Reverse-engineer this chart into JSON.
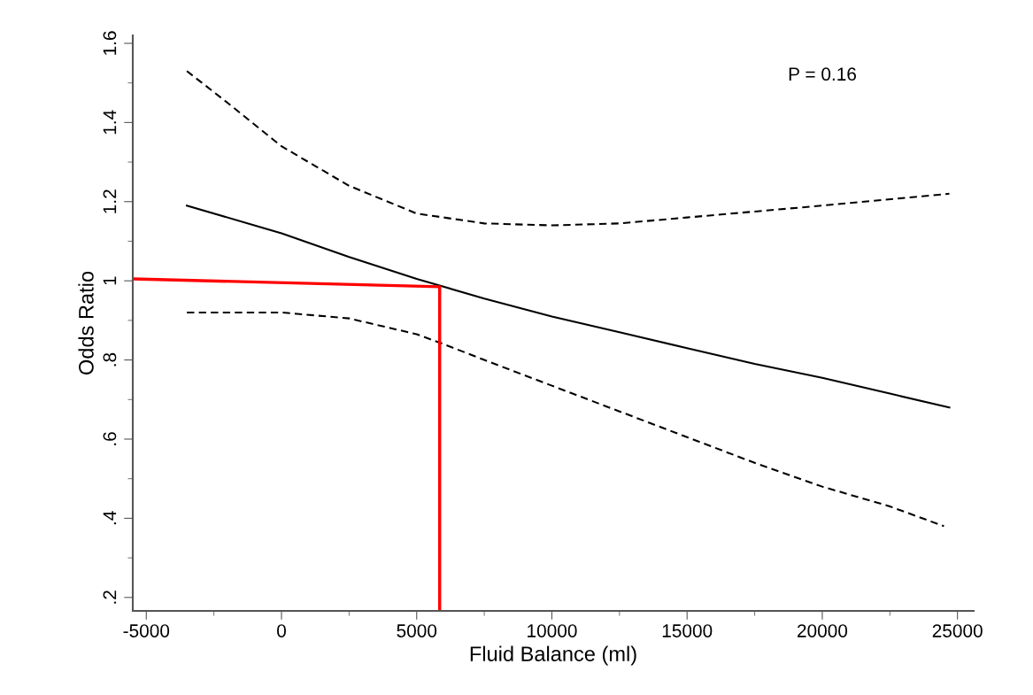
{
  "chart_data": {
    "type": "line",
    "xlabel": "Fluid Balance (ml)",
    "ylabel": "Odds Ratio",
    "annotations": [
      "P = 0.16"
    ],
    "series": [
      {
        "color": "#000000",
        "line_style": "dashed",
        "x": [
          -3500,
          -2000,
          0,
          2500,
          5000,
          7500,
          10000,
          12500,
          15000,
          17500,
          20000,
          24700
        ],
        "values": [
          1.53,
          1.45,
          1.34,
          1.24,
          1.17,
          1.145,
          1.14,
          1.145,
          1.16,
          1.175,
          1.19,
          1.22
        ]
      },
      {
        "color": "#000000",
        "line_style": "solid",
        "x": [
          -3500,
          0,
          2500,
          5000,
          7500,
          10000,
          12500,
          15000,
          17500,
          20000,
          22500,
          24700
        ],
        "values": [
          1.19,
          1.12,
          1.06,
          1.005,
          0.955,
          0.91,
          0.87,
          0.83,
          0.79,
          0.755,
          0.715,
          0.68
        ]
      },
      {
        "color": "#000000",
        "line_style": "dashed",
        "x": [
          -3500,
          0,
          2500,
          5000,
          6000,
          7500,
          10000,
          12500,
          15000,
          17500,
          20000,
          22500,
          24500
        ],
        "values": [
          0.92,
          0.92,
          0.905,
          0.865,
          0.84,
          0.8,
          0.735,
          0.67,
          0.605,
          0.54,
          0.48,
          0.43,
          0.38
        ]
      },
      {
        "color": "#ff0000",
        "line_style": "solid",
        "x": [
          -5500,
          5850,
          5850
        ],
        "values": [
          1.005,
          0.985,
          0.166
        ]
      }
    ],
    "xlim": [
      -5500,
      25600
    ],
    "ylim": [
      0.166,
      1.62
    ],
    "xticks": [
      -5000,
      0,
      5000,
      10000,
      15000,
      20000,
      25000
    ],
    "yticks": [
      {
        "value": 0.2,
        "label": ".2"
      },
      {
        "value": 0.4,
        "label": ".4"
      },
      {
        "value": 0.6,
        "label": ".6"
      },
      {
        "value": 0.8,
        "label": ".8"
      },
      1,
      1.2,
      1.4,
      1.6
    ],
    "grid": false,
    "legend": false,
    "marker": "none"
  }
}
